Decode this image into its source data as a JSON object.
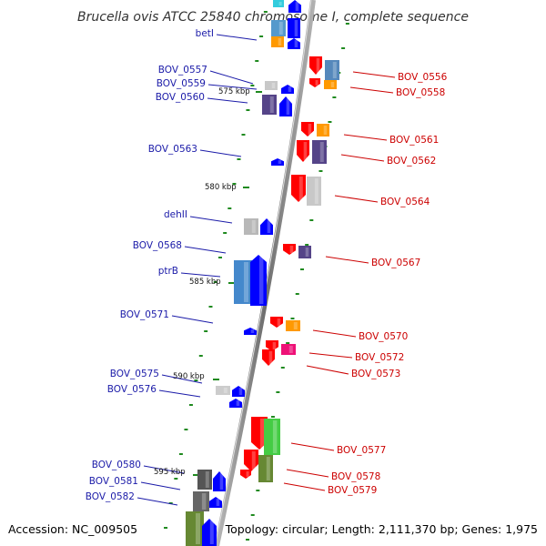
{
  "title": "Brucella ovis ATCC 25840 chromosome I, complete sequence",
  "footer": {
    "accession": "Accession: NC_009505",
    "summary": "Topology: circular; Length: 2,111,370 bp; Genes: 1,975"
  },
  "colors": {
    "backbone": "#8a8a8a",
    "tick": "#1f8a1f",
    "forward_gene": "#0000ff",
    "reverse_gene": "#ff0000",
    "left_label": "#1a1aa8",
    "right_label": "#cc0000"
  },
  "kbp_markers": [
    "575 kbp",
    "580 kbp",
    "585 kbp",
    "590 kbp",
    "595 kbp"
  ],
  "left_labels": [
    "betI",
    "BOV_0557",
    "BOV_0559",
    "BOV_0560",
    "BOV_0563",
    "dehII",
    "BOV_0568",
    "ptrB",
    "BOV_0571",
    "BOV_0575",
    "BOV_0576",
    "BOV_0580",
    "BOV_0581",
    "BOV_0582"
  ],
  "right_labels": [
    "BOV_0556",
    "BOV_0558",
    "BOV_0561",
    "BOV_0562",
    "BOV_0564",
    "BOV_0567",
    "BOV_0570",
    "BOV_0572",
    "BOV_0573",
    "BOV_0577",
    "BOV_0578",
    "BOV_0579"
  ]
}
